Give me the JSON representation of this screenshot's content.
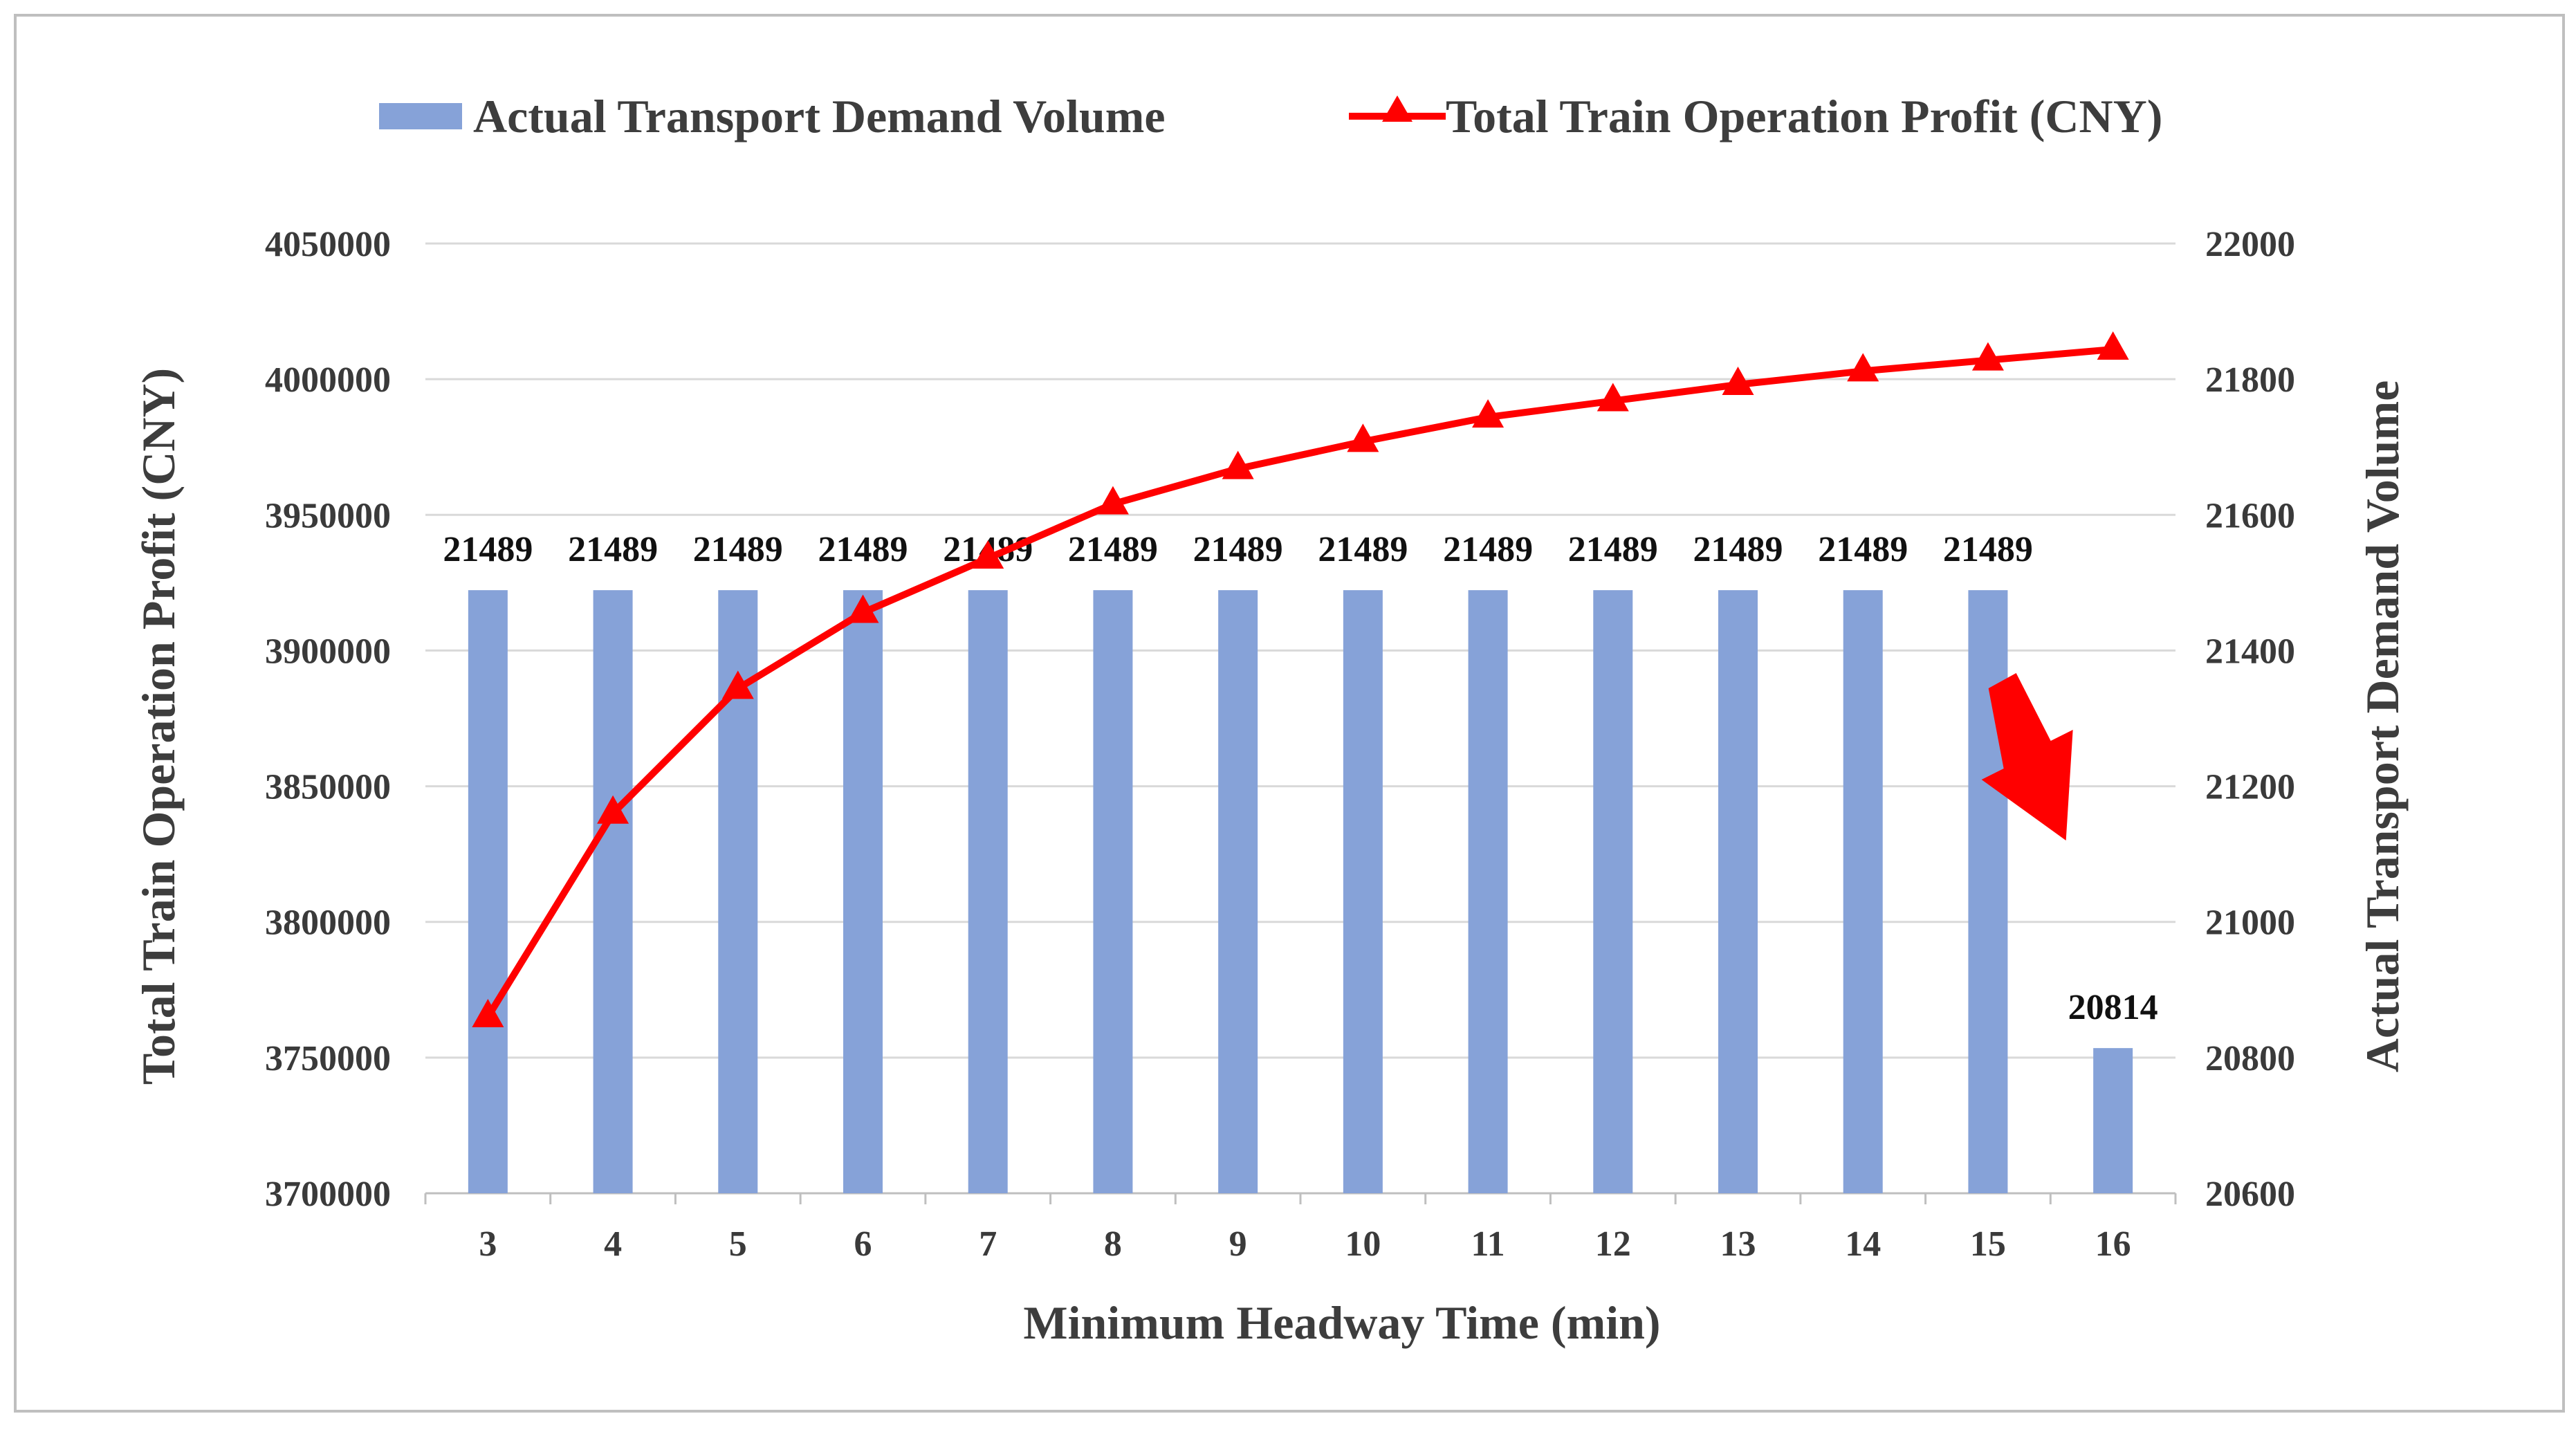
{
  "chart_data": {
    "type": "bar+line",
    "xlabel": "Minimum Headway Time (min)",
    "categories": [
      "3",
      "4",
      "5",
      "6",
      "7",
      "8",
      "9",
      "10",
      "11",
      "12",
      "13",
      "14",
      "15",
      "16"
    ],
    "series": [
      {
        "name": "Actual Transport Demand Volume",
        "type": "bar",
        "axis": "right",
        "color": "#86A2D8",
        "values": [
          21489,
          21489,
          21489,
          21489,
          21489,
          21489,
          21489,
          21489,
          21489,
          21489,
          21489,
          21489,
          21489,
          20814
        ],
        "data_labels": [
          "21489",
          "21489",
          "21489",
          "21489",
          "21489",
          "21489",
          "21489",
          "21489",
          "21489",
          "21489",
          "21489",
          "21489",
          "21489",
          "20814"
        ]
      },
      {
        "name": "Total Train Operation Profit (CNY)",
        "type": "line",
        "marker": "triangle",
        "axis": "left",
        "color": "#FF0000",
        "values": [
          3765000,
          3840000,
          3886000,
          3914000,
          3934000,
          3954000,
          3967000,
          3977000,
          3986000,
          3992000,
          3998000,
          4003000,
          4007000,
          4011000
        ]
      }
    ],
    "y_left": {
      "label": "Total Train Operation Profit (CNY)",
      "range": [
        3700000,
        4050000
      ],
      "ticks": [
        "3700000",
        "3750000",
        "3800000",
        "3850000",
        "3900000",
        "3950000",
        "4000000",
        "4050000"
      ]
    },
    "y_right": {
      "label": "Actual Transport Demand Volume",
      "range": [
        20600,
        22000
      ],
      "ticks": [
        "20600",
        "20800",
        "21000",
        "21200",
        "21400",
        "21600",
        "21800",
        "22000"
      ]
    },
    "legend": {
      "position": "top",
      "items": [
        "Actual Transport Demand Volume",
        "Total Train Operation Profit (CNY)"
      ]
    },
    "annotation": {
      "type": "arrow",
      "direction": "down-right",
      "color": "#FF0000",
      "target_category": "16"
    },
    "grid": true
  },
  "colors": {
    "bar": "#86A2D8",
    "line": "#FF0000",
    "grid": "#D9D9D9",
    "frame": "#BFBFBF",
    "axis_text": "#3A3A3A"
  }
}
